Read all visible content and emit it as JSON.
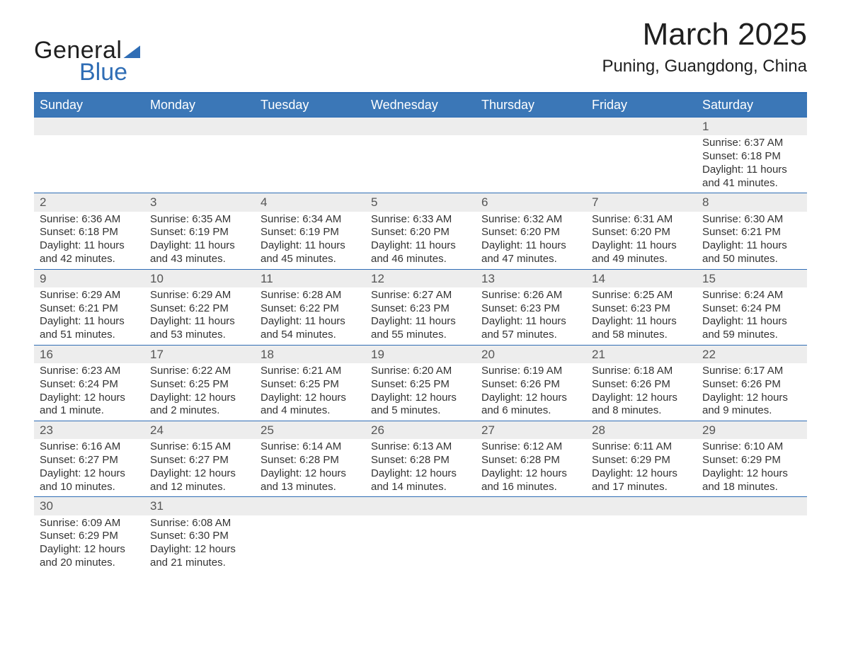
{
  "brand": {
    "word1": "General",
    "word2": "Blue",
    "accent_color": "#2f6db5"
  },
  "title": "March 2025",
  "location": "Puning, Guangdong, China",
  "colors": {
    "header_bg": "#3b77b7",
    "header_text": "#ffffff",
    "rule": "#2f6db5",
    "daynum_bg": "#ededed",
    "daynum_text": "#555555",
    "body_text": "#333333",
    "page_bg": "#ffffff"
  },
  "typography": {
    "title_fontsize": 44,
    "location_fontsize": 24,
    "header_fontsize": 18,
    "cell_fontsize": 15,
    "daynum_fontsize": 17,
    "logo_fontsize": 34
  },
  "weekdays": [
    "Sunday",
    "Monday",
    "Tuesday",
    "Wednesday",
    "Thursday",
    "Friday",
    "Saturday"
  ],
  "weeks": [
    [
      {
        "blank": true
      },
      {
        "blank": true
      },
      {
        "blank": true
      },
      {
        "blank": true
      },
      {
        "blank": true
      },
      {
        "blank": true
      },
      {
        "day": "1",
        "sunrise": "Sunrise: 6:37 AM",
        "sunset": "Sunset: 6:18 PM",
        "daylight": "Daylight: 11 hours and 41 minutes."
      }
    ],
    [
      {
        "day": "2",
        "sunrise": "Sunrise: 6:36 AM",
        "sunset": "Sunset: 6:18 PM",
        "daylight": "Daylight: 11 hours and 42 minutes."
      },
      {
        "day": "3",
        "sunrise": "Sunrise: 6:35 AM",
        "sunset": "Sunset: 6:19 PM",
        "daylight": "Daylight: 11 hours and 43 minutes."
      },
      {
        "day": "4",
        "sunrise": "Sunrise: 6:34 AM",
        "sunset": "Sunset: 6:19 PM",
        "daylight": "Daylight: 11 hours and 45 minutes."
      },
      {
        "day": "5",
        "sunrise": "Sunrise: 6:33 AM",
        "sunset": "Sunset: 6:20 PM",
        "daylight": "Daylight: 11 hours and 46 minutes."
      },
      {
        "day": "6",
        "sunrise": "Sunrise: 6:32 AM",
        "sunset": "Sunset: 6:20 PM",
        "daylight": "Daylight: 11 hours and 47 minutes."
      },
      {
        "day": "7",
        "sunrise": "Sunrise: 6:31 AM",
        "sunset": "Sunset: 6:20 PM",
        "daylight": "Daylight: 11 hours and 49 minutes."
      },
      {
        "day": "8",
        "sunrise": "Sunrise: 6:30 AM",
        "sunset": "Sunset: 6:21 PM",
        "daylight": "Daylight: 11 hours and 50 minutes."
      }
    ],
    [
      {
        "day": "9",
        "sunrise": "Sunrise: 6:29 AM",
        "sunset": "Sunset: 6:21 PM",
        "daylight": "Daylight: 11 hours and 51 minutes."
      },
      {
        "day": "10",
        "sunrise": "Sunrise: 6:29 AM",
        "sunset": "Sunset: 6:22 PM",
        "daylight": "Daylight: 11 hours and 53 minutes."
      },
      {
        "day": "11",
        "sunrise": "Sunrise: 6:28 AM",
        "sunset": "Sunset: 6:22 PM",
        "daylight": "Daylight: 11 hours and 54 minutes."
      },
      {
        "day": "12",
        "sunrise": "Sunrise: 6:27 AM",
        "sunset": "Sunset: 6:23 PM",
        "daylight": "Daylight: 11 hours and 55 minutes."
      },
      {
        "day": "13",
        "sunrise": "Sunrise: 6:26 AM",
        "sunset": "Sunset: 6:23 PM",
        "daylight": "Daylight: 11 hours and 57 minutes."
      },
      {
        "day": "14",
        "sunrise": "Sunrise: 6:25 AM",
        "sunset": "Sunset: 6:23 PM",
        "daylight": "Daylight: 11 hours and 58 minutes."
      },
      {
        "day": "15",
        "sunrise": "Sunrise: 6:24 AM",
        "sunset": "Sunset: 6:24 PM",
        "daylight": "Daylight: 11 hours and 59 minutes."
      }
    ],
    [
      {
        "day": "16",
        "sunrise": "Sunrise: 6:23 AM",
        "sunset": "Sunset: 6:24 PM",
        "daylight": "Daylight: 12 hours and 1 minute."
      },
      {
        "day": "17",
        "sunrise": "Sunrise: 6:22 AM",
        "sunset": "Sunset: 6:25 PM",
        "daylight": "Daylight: 12 hours and 2 minutes."
      },
      {
        "day": "18",
        "sunrise": "Sunrise: 6:21 AM",
        "sunset": "Sunset: 6:25 PM",
        "daylight": "Daylight: 12 hours and 4 minutes."
      },
      {
        "day": "19",
        "sunrise": "Sunrise: 6:20 AM",
        "sunset": "Sunset: 6:25 PM",
        "daylight": "Daylight: 12 hours and 5 minutes."
      },
      {
        "day": "20",
        "sunrise": "Sunrise: 6:19 AM",
        "sunset": "Sunset: 6:26 PM",
        "daylight": "Daylight: 12 hours and 6 minutes."
      },
      {
        "day": "21",
        "sunrise": "Sunrise: 6:18 AM",
        "sunset": "Sunset: 6:26 PM",
        "daylight": "Daylight: 12 hours and 8 minutes."
      },
      {
        "day": "22",
        "sunrise": "Sunrise: 6:17 AM",
        "sunset": "Sunset: 6:26 PM",
        "daylight": "Daylight: 12 hours and 9 minutes."
      }
    ],
    [
      {
        "day": "23",
        "sunrise": "Sunrise: 6:16 AM",
        "sunset": "Sunset: 6:27 PM",
        "daylight": "Daylight: 12 hours and 10 minutes."
      },
      {
        "day": "24",
        "sunrise": "Sunrise: 6:15 AM",
        "sunset": "Sunset: 6:27 PM",
        "daylight": "Daylight: 12 hours and 12 minutes."
      },
      {
        "day": "25",
        "sunrise": "Sunrise: 6:14 AM",
        "sunset": "Sunset: 6:28 PM",
        "daylight": "Daylight: 12 hours and 13 minutes."
      },
      {
        "day": "26",
        "sunrise": "Sunrise: 6:13 AM",
        "sunset": "Sunset: 6:28 PM",
        "daylight": "Daylight: 12 hours and 14 minutes."
      },
      {
        "day": "27",
        "sunrise": "Sunrise: 6:12 AM",
        "sunset": "Sunset: 6:28 PM",
        "daylight": "Daylight: 12 hours and 16 minutes."
      },
      {
        "day": "28",
        "sunrise": "Sunrise: 6:11 AM",
        "sunset": "Sunset: 6:29 PM",
        "daylight": "Daylight: 12 hours and 17 minutes."
      },
      {
        "day": "29",
        "sunrise": "Sunrise: 6:10 AM",
        "sunset": "Sunset: 6:29 PM",
        "daylight": "Daylight: 12 hours and 18 minutes."
      }
    ],
    [
      {
        "day": "30",
        "sunrise": "Sunrise: 6:09 AM",
        "sunset": "Sunset: 6:29 PM",
        "daylight": "Daylight: 12 hours and 20 minutes."
      },
      {
        "day": "31",
        "sunrise": "Sunrise: 6:08 AM",
        "sunset": "Sunset: 6:30 PM",
        "daylight": "Daylight: 12 hours and 21 minutes."
      },
      {
        "blank": true
      },
      {
        "blank": true
      },
      {
        "blank": true
      },
      {
        "blank": true
      },
      {
        "blank": true
      }
    ]
  ]
}
